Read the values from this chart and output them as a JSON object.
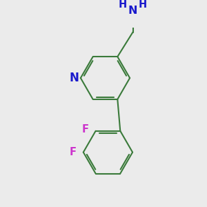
{
  "bg_color": "#ebebeb",
  "bond_color": "#3a7a3a",
  "N_color": "#1a1acc",
  "F_color": "#cc33cc",
  "bond_width": 1.5,
  "dbo": 0.055,
  "font_size": 10.5,
  "fig_size": [
    3.0,
    3.0
  ],
  "dpi": 100,
  "xlim": [
    -0.5,
    3.5
  ],
  "ylim": [
    -3.2,
    2.0
  ]
}
